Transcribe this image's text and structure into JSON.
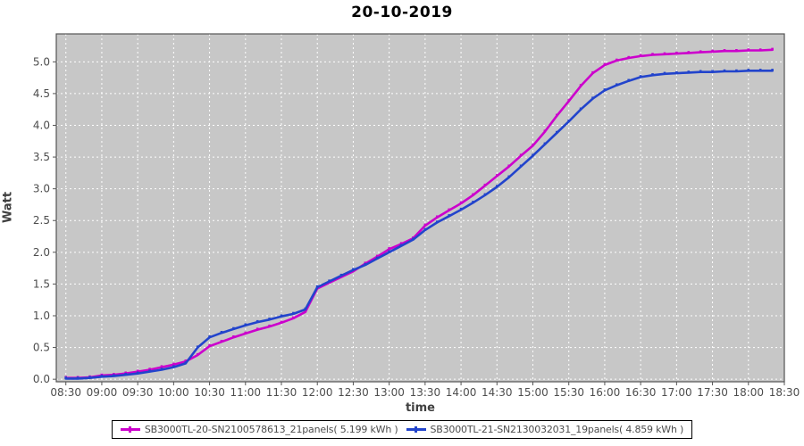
{
  "chart_data": {
    "type": "line",
    "title": "20-10-2019",
    "xlabel": "time",
    "ylabel": "Watt",
    "grid": true,
    "legend_position": "bottom-center",
    "plot_bg_color": "#c7c7c7",
    "grid_color": "#ffffff",
    "plot_border_color": "#545454",
    "tick_label_color": "#4d4d4d",
    "x_tick_labels": [
      "08:30",
      "09:00",
      "09:30",
      "10:00",
      "10:30",
      "11:00",
      "11:30",
      "12:00",
      "12:30",
      "13:00",
      "13:30",
      "14:00",
      "14:30",
      "15:00",
      "15:30",
      "16:00",
      "16:30",
      "17:00",
      "17:30",
      "18:00",
      "18:30"
    ],
    "y_ticks": [
      0.0,
      0.5,
      1.0,
      1.5,
      2.0,
      2.5,
      3.0,
      3.5,
      4.0,
      4.5,
      5.0
    ],
    "y_tick_labels": [
      "0.0",
      "0.5",
      "1.0",
      "1.5",
      "2.0",
      "2.5",
      "3.0",
      "3.5",
      "4.0",
      "4.5",
      "5.0"
    ],
    "ylim": [
      -0.04,
      5.44
    ],
    "xlim_times": [
      "08:22",
      "18:30"
    ],
    "times": [
      "08:30",
      "08:40",
      "08:50",
      "09:00",
      "09:10",
      "09:20",
      "09:30",
      "09:40",
      "09:50",
      "10:00",
      "10:10",
      "10:20",
      "10:30",
      "10:40",
      "10:50",
      "11:00",
      "11:10",
      "11:20",
      "11:30",
      "11:40",
      "11:50",
      "12:00",
      "12:10",
      "12:20",
      "12:30",
      "12:40",
      "12:50",
      "13:00",
      "13:10",
      "13:20",
      "13:30",
      "13:40",
      "13:50",
      "14:00",
      "14:10",
      "14:20",
      "14:30",
      "14:40",
      "14:50",
      "15:00",
      "15:10",
      "15:20",
      "15:30",
      "15:40",
      "15:50",
      "16:00",
      "16:10",
      "16:20",
      "16:30",
      "16:40",
      "16:50",
      "17:00",
      "17:10",
      "17:20",
      "17:30",
      "17:40",
      "17:50",
      "18:00",
      "18:10",
      "18:20"
    ],
    "series": [
      {
        "label": "SB3000TL-20-SN2100578613_21panels( 5.199 kWh )",
        "color": "#cc00cc",
        "total_kwh": "5.199",
        "values": [
          0.02,
          0.02,
          0.03,
          0.06,
          0.07,
          0.09,
          0.12,
          0.15,
          0.19,
          0.23,
          0.28,
          0.38,
          0.52,
          0.59,
          0.66,
          0.72,
          0.78,
          0.83,
          0.89,
          0.96,
          1.06,
          1.43,
          1.52,
          1.61,
          1.7,
          1.82,
          1.93,
          2.05,
          2.13,
          2.22,
          2.42,
          2.55,
          2.66,
          2.77,
          2.9,
          3.05,
          3.2,
          3.35,
          3.52,
          3.68,
          3.9,
          4.15,
          4.38,
          4.62,
          4.82,
          4.95,
          5.02,
          5.06,
          5.09,
          5.11,
          5.12,
          5.13,
          5.14,
          5.15,
          5.16,
          5.17,
          5.17,
          5.18,
          5.18,
          5.19
        ]
      },
      {
        "label": "SB3000TL-21-SN2130032031_19panels( 4.859 kWh )",
        "color": "#2244cc",
        "total_kwh": "4.859",
        "values": [
          0.01,
          0.01,
          0.02,
          0.04,
          0.05,
          0.07,
          0.09,
          0.12,
          0.15,
          0.19,
          0.25,
          0.5,
          0.66,
          0.73,
          0.79,
          0.85,
          0.9,
          0.94,
          0.99,
          1.03,
          1.1,
          1.45,
          1.54,
          1.63,
          1.72,
          1.8,
          1.9,
          2.0,
          2.1,
          2.2,
          2.35,
          2.47,
          2.57,
          2.67,
          2.78,
          2.9,
          3.03,
          3.18,
          3.35,
          3.52,
          3.7,
          3.88,
          4.06,
          4.25,
          4.42,
          4.55,
          4.63,
          4.7,
          4.76,
          4.79,
          4.81,
          4.82,
          4.83,
          4.84,
          4.84,
          4.85,
          4.85,
          4.86,
          4.86,
          4.86
        ]
      }
    ]
  }
}
